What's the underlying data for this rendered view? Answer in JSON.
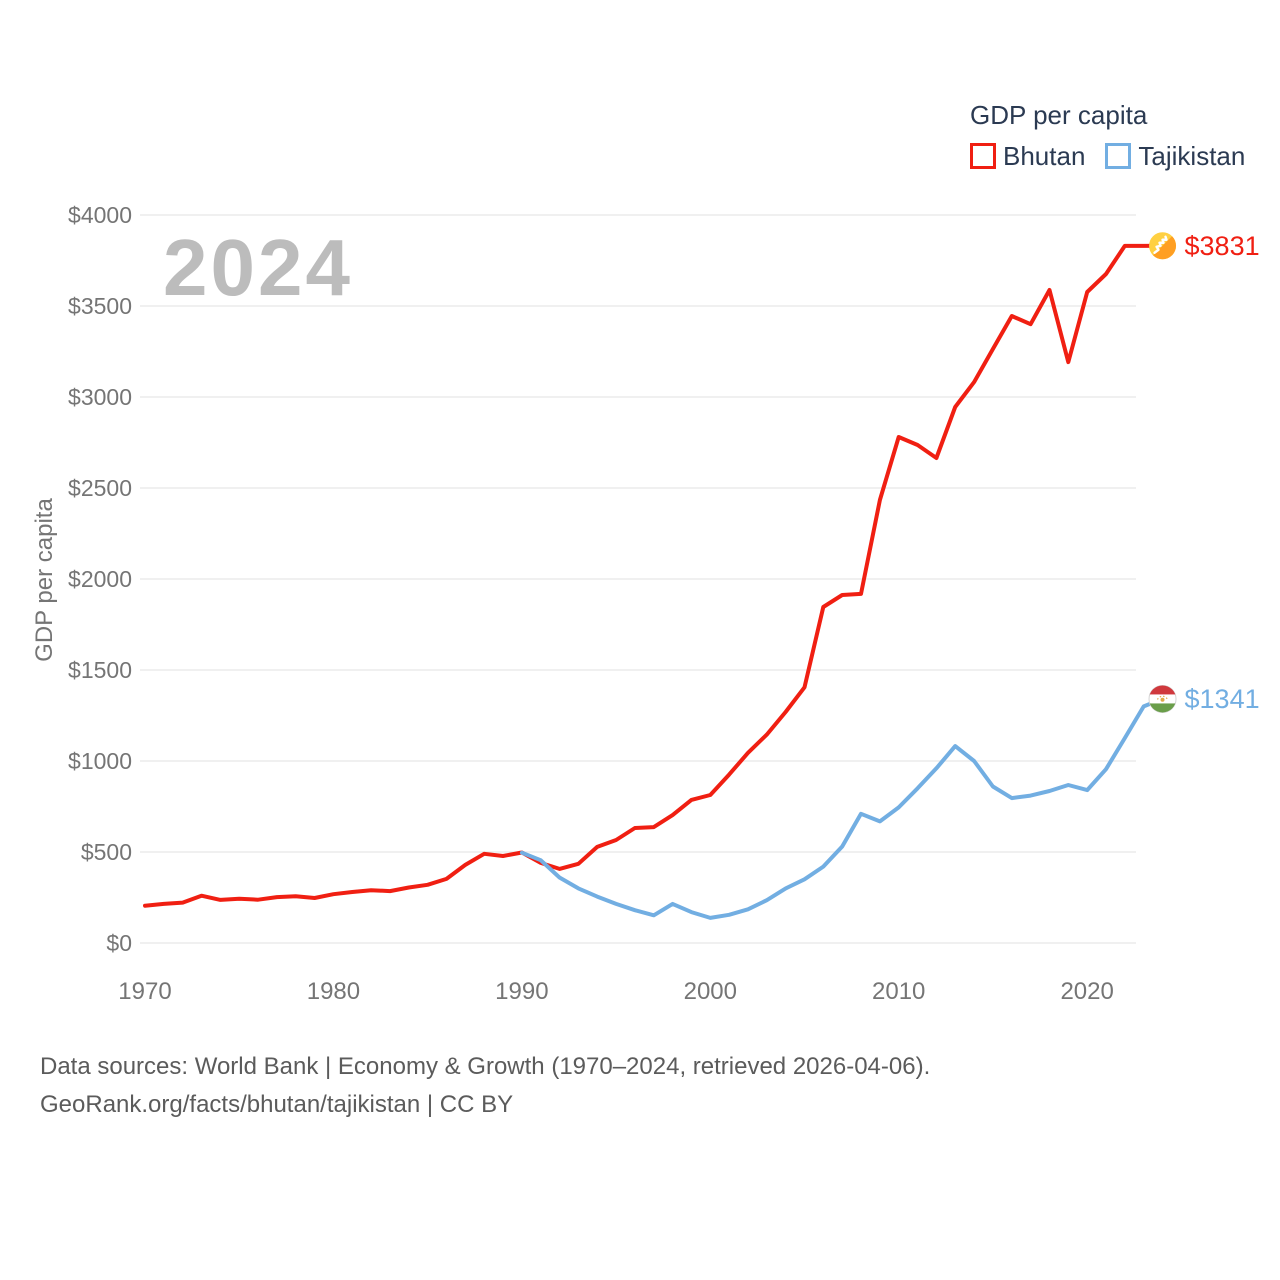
{
  "watermark": "2024",
  "legend": {
    "title": "GDP per capita",
    "items": [
      {
        "label": "Bhutan",
        "color": "#f01f12"
      },
      {
        "label": "Tajikistan",
        "color": "#72aee2"
      }
    ]
  },
  "footer": {
    "line1": "Data sources: World Bank | Economy & Growth (1970–2024, retrieved 2026-04-06).",
    "line2": "GeoRank.org/facts/bhutan/tajikistan | CC BY"
  },
  "colors": {
    "bhutan_line": "#f01f12",
    "tajikistan_line": "#72aee2",
    "axis_text": "#757575",
    "legend_text": "#2b3a52",
    "gridline": "#ebebeb",
    "watermark_text": "#bcbcbc",
    "footer_text": "#5b5b5b"
  },
  "chart_data": {
    "type": "line",
    "title": "GDP per capita",
    "ylabel": "GDP per capita",
    "xlabel": "",
    "year_watermark": "2024",
    "grid": true,
    "legend_position": "top-right",
    "ylim": [
      0,
      4000
    ],
    "xlim": [
      1970,
      2024
    ],
    "yticks": [
      0,
      500,
      1000,
      1500,
      2000,
      2500,
      3000,
      3500,
      4000
    ],
    "ytick_prefix": "$",
    "xticks": [
      1970,
      1980,
      1990,
      2000,
      2010,
      2020
    ],
    "series": [
      {
        "name": "Bhutan",
        "color": "#f01f12",
        "flag": "bhutan",
        "start_year": 1970,
        "end_year": 2024,
        "end_label": "$3831",
        "end_value": 3831,
        "values": [
          205,
          215,
          222,
          260,
          237,
          243,
          238,
          252,
          257,
          247,
          268,
          280,
          290,
          285,
          305,
          320,
          352,
          429,
          490,
          478,
          497,
          440,
          407,
          435,
          528,
          566,
          632,
          637,
          703,
          786,
          813,
          925,
          1045,
          1145,
          1270,
          1405,
          1846,
          1912,
          1918,
          2434,
          2780,
          2736,
          2665,
          2945,
          3082,
          3264,
          3445,
          3400,
          3588,
          3192,
          3577,
          3676,
          3830,
          3830,
          3831
        ]
      },
      {
        "name": "Tajikistan",
        "color": "#72aee2",
        "flag": "tajikistan",
        "start_year": 1990,
        "end_year": 2024,
        "end_label": "$1341",
        "end_value": 1341,
        "values": [
          496,
          455,
          360,
          300,
          255,
          215,
          180,
          152,
          215,
          170,
          138,
          155,
          185,
          235,
          300,
          350,
          420,
          530,
          710,
          668,
          745,
          850,
          960,
          1082,
          1000,
          860,
          796,
          810,
          835,
          868,
          840,
          955,
          1126,
          1300,
          1341
        ]
      }
    ]
  }
}
